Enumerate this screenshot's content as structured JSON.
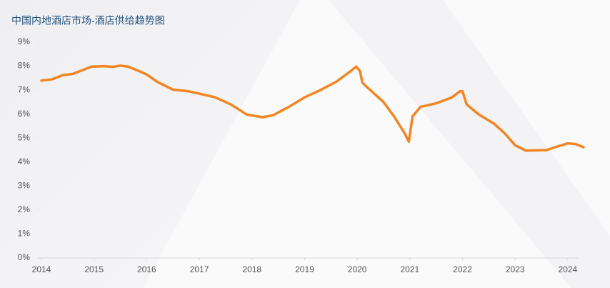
{
  "chart_data": {
    "type": "line",
    "title": "中国内地酒店市场-酒店供给趋势图",
    "x": [
      2014.0,
      2014.2,
      2014.4,
      2014.6,
      2014.8,
      2014.95,
      2015.2,
      2015.35,
      2015.5,
      2015.65,
      2015.9,
      2016.0,
      2016.2,
      2016.5,
      2016.8,
      2017.0,
      2017.3,
      2017.6,
      2017.9,
      2018.2,
      2018.4,
      2018.7,
      2019.0,
      2019.3,
      2019.6,
      2019.85,
      2019.98,
      2020.05,
      2020.1,
      2020.3,
      2020.5,
      2020.7,
      2020.9,
      2020.98,
      2021.05,
      2021.2,
      2021.5,
      2021.8,
      2021.95,
      2022.0,
      2022.08,
      2022.3,
      2022.6,
      2022.8,
      2023.0,
      2023.2,
      2023.6,
      2023.8,
      2024.0,
      2024.15,
      2024.3
    ],
    "series": [
      {
        "color": "#f28522",
        "values": [
          7.4,
          7.45,
          7.62,
          7.68,
          7.85,
          7.98,
          8.0,
          7.97,
          8.02,
          7.98,
          7.75,
          7.65,
          7.35,
          7.02,
          6.95,
          6.85,
          6.7,
          6.4,
          5.98,
          5.87,
          5.95,
          6.3,
          6.7,
          7.0,
          7.35,
          7.75,
          7.98,
          7.8,
          7.3,
          6.9,
          6.5,
          5.9,
          5.2,
          4.85,
          5.9,
          6.3,
          6.45,
          6.7,
          6.95,
          6.95,
          6.4,
          6.0,
          5.6,
          5.2,
          4.7,
          4.48,
          4.5,
          4.65,
          4.78,
          4.75,
          4.62
        ]
      }
    ],
    "xlim": [
      2014,
      2024.3
    ],
    "xticks": [
      2014,
      2015,
      2016,
      2017,
      2018,
      2019,
      2020,
      2021,
      2022,
      2023,
      2024
    ],
    "ylim": [
      0,
      9
    ],
    "yticks": [
      {
        "value": 0,
        "label": "0%"
      },
      {
        "value": 1,
        "label": "1%"
      },
      {
        "value": 2,
        "label": "2%"
      },
      {
        "value": 3,
        "label": "3%"
      },
      {
        "value": 4,
        "label": "4%"
      },
      {
        "value": 5,
        "label": "5%"
      },
      {
        "value": 6,
        "label": "6%"
      },
      {
        "value": 7,
        "label": "7%"
      },
      {
        "value": 8,
        "label": "8%"
      },
      {
        "value": 9,
        "label": "9%"
      }
    ]
  }
}
